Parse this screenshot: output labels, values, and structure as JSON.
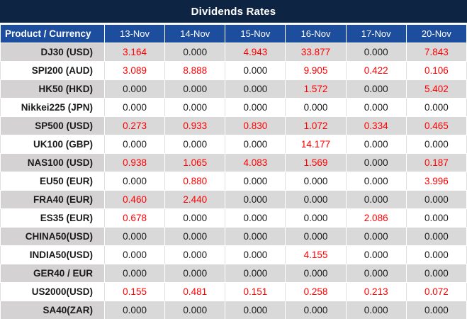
{
  "title": "Dividends Rates",
  "colors": {
    "title_bar_bg": "#0d2443",
    "header_row_bg": "#1c4e9d",
    "alt_row_bg": "#d9d9d9",
    "zero_value_color": "#1a1a1a",
    "nonzero_value_color": "#fe0000"
  },
  "chart_data": {
    "type": "table",
    "title": "Dividends Rates",
    "columns": [
      "Product / Currency",
      "13-Nov",
      "14-Nov",
      "15-Nov",
      "16-Nov",
      "17-Nov",
      "20-Nov"
    ],
    "rows": [
      {
        "product": "DJ30 (USD)",
        "values": [
          "3.164",
          "0.000",
          "4.943",
          "33.877",
          "0.000",
          "7.843"
        ]
      },
      {
        "product": "SPI200 (AUD)",
        "values": [
          "3.089",
          "8.888",
          "0.000",
          "9.905",
          "0.422",
          "0.106"
        ]
      },
      {
        "product": "HK50 (HKD)",
        "values": [
          "0.000",
          "0.000",
          "0.000",
          "1.572",
          "0.000",
          "5.402"
        ]
      },
      {
        "product": "Nikkei225 (JPN)",
        "values": [
          "0.000",
          "0.000",
          "0.000",
          "0.000",
          "0.000",
          "0.000"
        ]
      },
      {
        "product": "SP500 (USD)",
        "values": [
          "0.273",
          "0.933",
          "0.830",
          "1.072",
          "0.334",
          "0.465"
        ]
      },
      {
        "product": "UK100 (GBP)",
        "values": [
          "0.000",
          "0.000",
          "0.000",
          "14.177",
          "0.000",
          "0.000"
        ]
      },
      {
        "product": "NAS100 (USD)",
        "values": [
          "0.938",
          "1.065",
          "4.083",
          "1.569",
          "0.000",
          "0.187"
        ]
      },
      {
        "product": "EU50 (EUR)",
        "values": [
          "0.000",
          "0.880",
          "0.000",
          "0.000",
          "0.000",
          "3.996"
        ]
      },
      {
        "product": "FRA40 (EUR)",
        "values": [
          "0.460",
          "2.440",
          "0.000",
          "0.000",
          "0.000",
          "0.000"
        ]
      },
      {
        "product": "ES35 (EUR)",
        "values": [
          "0.678",
          "0.000",
          "0.000",
          "0.000",
          "2.086",
          "0.000"
        ]
      },
      {
        "product": "CHINA50(USD)",
        "values": [
          "0.000",
          "0.000",
          "0.000",
          "0.000",
          "0.000",
          "0.000"
        ]
      },
      {
        "product": "INDIA50(USD)",
        "values": [
          "0.000",
          "0.000",
          "0.000",
          "4.155",
          "0.000",
          "0.000"
        ]
      },
      {
        "product": "GER40 / EUR",
        "values": [
          "0.000",
          "0.000",
          "0.000",
          "0.000",
          "0.000",
          "0.000"
        ]
      },
      {
        "product": "US2000(USD)",
        "values": [
          "0.155",
          "0.481",
          "0.151",
          "0.258",
          "0.213",
          "0.072"
        ]
      },
      {
        "product": "SA40(ZAR)",
        "values": [
          "0.000",
          "0.000",
          "0.000",
          "0.000",
          "0.000",
          "0.000"
        ]
      }
    ]
  }
}
